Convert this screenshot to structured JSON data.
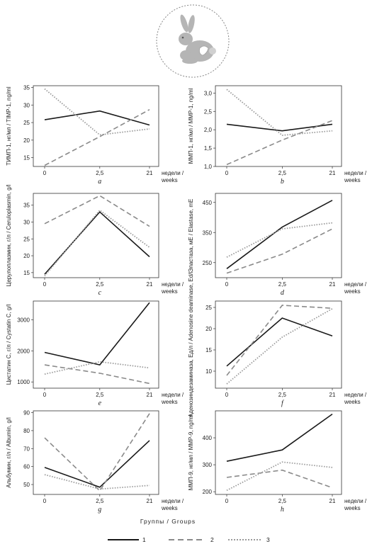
{
  "logo": {
    "name": "rabbit-icon"
  },
  "legend": {
    "title": "Группы / Groups",
    "items": [
      {
        "label": "1",
        "style": "solid",
        "color": "#1a1a1a"
      },
      {
        "label": "2",
        "style": "dashed",
        "color": "#8a8a8a"
      },
      {
        "label": "3",
        "style": "dotted",
        "color": "#9a9a9a"
      }
    ]
  },
  "chart_data": [
    {
      "type": "line",
      "panel": "a",
      "ylabel": "ТИМП-1, нг/мл / TIMP-1, ng/ml",
      "x": [
        "0",
        "2,5",
        "21"
      ],
      "xlabel": [
        "недели /",
        "weeks"
      ],
      "yticks": [
        15,
        20,
        25,
        30,
        35
      ],
      "ylim": [
        12.5,
        35.5
      ],
      "ydec": 0,
      "series": [
        {
          "name": "1",
          "values": [
            25.8,
            28.3,
            24.3
          ]
        },
        {
          "name": "2",
          "values": [
            12.8,
            21.0,
            28.7
          ]
        },
        {
          "name": "3",
          "values": [
            34.6,
            21.5,
            23.2
          ]
        }
      ]
    },
    {
      "type": "line",
      "panel": "b",
      "ylabel": "ММП-1, нг/мл / MMP-1, ng/ml",
      "x": [
        "0",
        "2,5",
        "21"
      ],
      "xlabel": [
        "недели /",
        "weeks"
      ],
      "yticks": [
        1.0,
        1.5,
        2.0,
        2.5,
        3.0
      ],
      "ylim": [
        1.0,
        3.2
      ],
      "ydec": 1,
      "series": [
        {
          "name": "1",
          "values": [
            2.15,
            1.97,
            2.15
          ]
        },
        {
          "name": "2",
          "values": [
            1.05,
            1.72,
            2.25
          ]
        },
        {
          "name": "3",
          "values": [
            3.1,
            1.85,
            1.97
          ]
        }
      ]
    },
    {
      "type": "line",
      "panel": "c",
      "ylabel": "Церулоплазмин, г/л / Ceruloplasmin, g/l",
      "x": [
        "0",
        "2,5",
        "21"
      ],
      "xlabel": [
        "недели /",
        "weeks"
      ],
      "yticks": [
        15,
        20,
        25,
        30,
        35
      ],
      "ylim": [
        13.5,
        38.5
      ],
      "ydec": 0,
      "series": [
        {
          "name": "1",
          "values": [
            14.5,
            33.0,
            19.7
          ]
        },
        {
          "name": "2",
          "values": [
            29.5,
            37.8,
            28.7
          ]
        },
        {
          "name": "3",
          "values": [
            14.0,
            33.5,
            22.5
          ]
        }
      ]
    },
    {
      "type": "line",
      "panel": "d",
      "ylabel": "Эластаза, мЕ / Elastase, mE",
      "x": [
        "0",
        "2,5",
        "21"
      ],
      "xlabel": [
        "недели /",
        "weeks"
      ],
      "yticks": [
        250,
        350,
        450
      ],
      "ylim": [
        200,
        480
      ],
      "ydec": 0,
      "series": [
        {
          "name": "1",
          "values": [
            230,
            368,
            457
          ]
        },
        {
          "name": "2",
          "values": [
            215,
            278,
            362
          ]
        },
        {
          "name": "3",
          "values": [
            268,
            362,
            382
          ]
        }
      ]
    },
    {
      "type": "line",
      "panel": "e",
      "ylabel": "Цистатин C, г/л / Cystatin C, g/l",
      "x": [
        "0",
        "2,5",
        "21"
      ],
      "xlabel": [
        "недели /",
        "weeks"
      ],
      "yticks": [
        1000,
        2000,
        3000
      ],
      "ylim": [
        800,
        3600
      ],
      "ydec": 0,
      "series": [
        {
          "name": "1",
          "values": [
            1950,
            1550,
            3550
          ]
        },
        {
          "name": "2",
          "values": [
            1550,
            1280,
            950
          ]
        },
        {
          "name": "3",
          "values": [
            1250,
            1650,
            1450
          ]
        }
      ]
    },
    {
      "type": "line",
      "panel": "f",
      "ylabel": "Аденозиндезаминаза, Ед/л / Adenosine deaminase, Ed/l",
      "x": [
        "0",
        "2,5",
        "21"
      ],
      "xlabel": [
        "недели /",
        "weeks"
      ],
      "yticks": [
        10,
        15,
        20,
        25
      ],
      "ylim": [
        6.0,
        26.5
      ],
      "ydec": 0,
      "series": [
        {
          "name": "1",
          "values": [
            11.2,
            22.5,
            18.3
          ]
        },
        {
          "name": "2",
          "values": [
            9.0,
            25.5,
            24.8
          ]
        },
        {
          "name": "3",
          "values": [
            7.0,
            18.0,
            24.7
          ]
        }
      ]
    },
    {
      "type": "line",
      "panel": "g",
      "ylabel": "Альбумин, г/л / Albumin, g/l",
      "x": [
        "0",
        "2,5",
        "21"
      ],
      "xlabel": [
        "недели /",
        "weeks"
      ],
      "yticks": [
        50,
        60,
        70,
        80,
        90
      ],
      "ylim": [
        44.5,
        91.0
      ],
      "ydec": 0,
      "series": [
        {
          "name": "1",
          "values": [
            59.5,
            48.5,
            74.5
          ]
        },
        {
          "name": "2",
          "values": [
            76.0,
            46.5,
            89.5
          ]
        },
        {
          "name": "3",
          "values": [
            55.5,
            47.5,
            49.5
          ]
        }
      ]
    },
    {
      "type": "line",
      "panel": "h",
      "ylabel": "ММП-9, нг/мл / MMP-9, ng/ml",
      "x": [
        "0",
        "2,5",
        "21"
      ],
      "xlabel": [
        "недели /",
        "weeks"
      ],
      "yticks": [
        200,
        300,
        400
      ],
      "ylim": [
        190,
        500
      ],
      "ydec": 0,
      "series": [
        {
          "name": "1",
          "values": [
            313,
            355,
            488
          ]
        },
        {
          "name": "2",
          "values": [
            253,
            280,
            215
          ]
        },
        {
          "name": "3",
          "values": [
            205,
            310,
            290
          ]
        }
      ]
    }
  ]
}
